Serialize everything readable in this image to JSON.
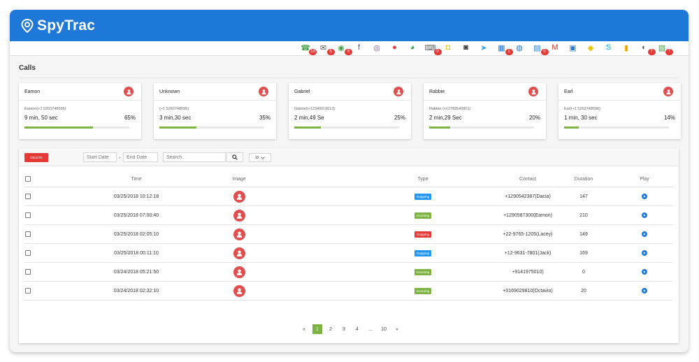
{
  "app": {
    "title": "SpyTrac"
  },
  "colors": {
    "brand": "#1e78d7",
    "accent_green": "#7cb342",
    "danger": "#e53935",
    "outgoing": "#2196f3",
    "incoming": "#7cb342"
  },
  "icon_bar": [
    {
      "name": "phone-icon",
      "badge": "10",
      "color": "#43a047",
      "glyph": "☎"
    },
    {
      "name": "mail-icon",
      "badge": "5",
      "color": "#555555",
      "glyph": "✉"
    },
    {
      "name": "whatsapp-icon",
      "badge": "6",
      "color": "#43a047",
      "glyph": "◉"
    },
    {
      "name": "facebook-icon",
      "badge": "",
      "color": "#3b5998",
      "glyph": "f"
    },
    {
      "name": "viber-icon",
      "badge": "",
      "color": "#7b519d",
      "glyph": "◎"
    },
    {
      "name": "tinder-icon",
      "badge": "",
      "color": "#e53935",
      "glyph": "●"
    },
    {
      "name": "wechat-icon",
      "badge": "",
      "color": "#43a047",
      "glyph": "◕"
    },
    {
      "name": "keyboard-icon",
      "badge": "0",
      "color": "#666666",
      "glyph": "⌨"
    },
    {
      "name": "snapchat-icon",
      "badge": "",
      "color": "#f2c300",
      "glyph": "◘"
    },
    {
      "name": "instagram-icon",
      "badge": "",
      "color": "#333333",
      "glyph": "◙"
    },
    {
      "name": "telegram-icon",
      "badge": "",
      "color": "#2ca5e0",
      "glyph": "➤"
    },
    {
      "name": "calendar-icon",
      "badge": "1",
      "color": "#1e78d7",
      "glyph": "▦"
    },
    {
      "name": "hangouts-icon",
      "badge": "",
      "color": "#1e78d7",
      "glyph": "◍"
    },
    {
      "name": "notes-icon",
      "badge": "0",
      "color": "#1e78d7",
      "glyph": "▤"
    },
    {
      "name": "gmail-icon",
      "badge": "",
      "color": "#d93025",
      "glyph": "M"
    },
    {
      "name": "flickr-icon",
      "badge": "",
      "color": "#1e78d7",
      "glyph": "▣"
    },
    {
      "name": "kakao-icon",
      "badge": "",
      "color": "#f2c300",
      "glyph": "◆"
    },
    {
      "name": "skype-icon",
      "badge": "",
      "color": "#00aff0",
      "glyph": "S"
    },
    {
      "name": "files-icon",
      "badge": "",
      "color": "#f2a900",
      "glyph": "▮"
    },
    {
      "name": "browser-history-icon",
      "badge": "7",
      "color": "#555555",
      "glyph": "◐"
    },
    {
      "name": "photos-icon",
      "badge": "7",
      "color": "#43a047",
      "glyph": "▨"
    }
  ],
  "section": {
    "title": "Calls"
  },
  "cards": [
    {
      "name": "Eamon",
      "sub": "Eamon(+1 5263748596)",
      "duration": "9 min, 50 sec",
      "percent_label": "65%",
      "percent": 0.65
    },
    {
      "name": "Unknown",
      "sub": "(+1 5263748596)",
      "duration": "3 min,30 sec",
      "percent_label": "35%",
      "percent": 0.35
    },
    {
      "name": "Gabriel",
      "sub": "Gabriel(+12340619013)",
      "duration": "2 min,49 Se",
      "percent_label": "25%",
      "percent": 0.25
    },
    {
      "name": "Rabbie",
      "sub": "Rabbie (+12789543801)",
      "duration": "2 min,29 Sec",
      "percent_label": "20%",
      "percent": 0.2
    },
    {
      "name": "Earl",
      "sub": "Earl(+1 5263748596)",
      "duration": "1 min, 30 sec",
      "percent_label": "14%",
      "percent": 0.14
    }
  ],
  "toolbar": {
    "delete_label": "DELETE",
    "start_date_placeholder": "Start Date",
    "date_separator": "-",
    "end_date_placeholder": "End Date",
    "search_placeholder": "Search..",
    "page_size": "10"
  },
  "table": {
    "headers": {
      "time": "Time",
      "image": "Image",
      "type": "Type",
      "contact": "Contact",
      "duration": "Duration",
      "play": "Play"
    },
    "rows": [
      {
        "time": "03/25/2018 10:12:18",
        "type": "Outgoing",
        "contact": "+1290542387(Dacia)",
        "duration": "147"
      },
      {
        "time": "03/25/2018 07:00:40",
        "type": "Incoming",
        "contact": "+1290587300(Eamon)",
        "duration": "210"
      },
      {
        "time": "03/25/2018 02:05:10",
        "type": "Outgoing",
        "contact": "+22-9765-1205(Lacey)",
        "duration": "149"
      },
      {
        "time": "03/25/2018 00:11:10",
        "type": "Outgoing",
        "contact": "+12-9631-7801(Jack)",
        "duration": "169"
      },
      {
        "time": "03/24/2018 05:21:50",
        "type": "Incoming",
        "contact": "+9141975010)",
        "duration": "0"
      },
      {
        "time": "03/24/2018 02:32:10",
        "type": "Incoming",
        "contact": "+0169029810(Octavio)",
        "duration": "20"
      }
    ]
  },
  "type_colors": [
    "#2196f3",
    "#7cb342",
    "#e53935",
    "#2196f3",
    "#7cb342",
    "#7cb342"
  ],
  "pagination": {
    "prev": "«",
    "pages": [
      "1",
      "2",
      "3",
      "4",
      "...",
      "10"
    ],
    "active": "1",
    "next": "»"
  }
}
